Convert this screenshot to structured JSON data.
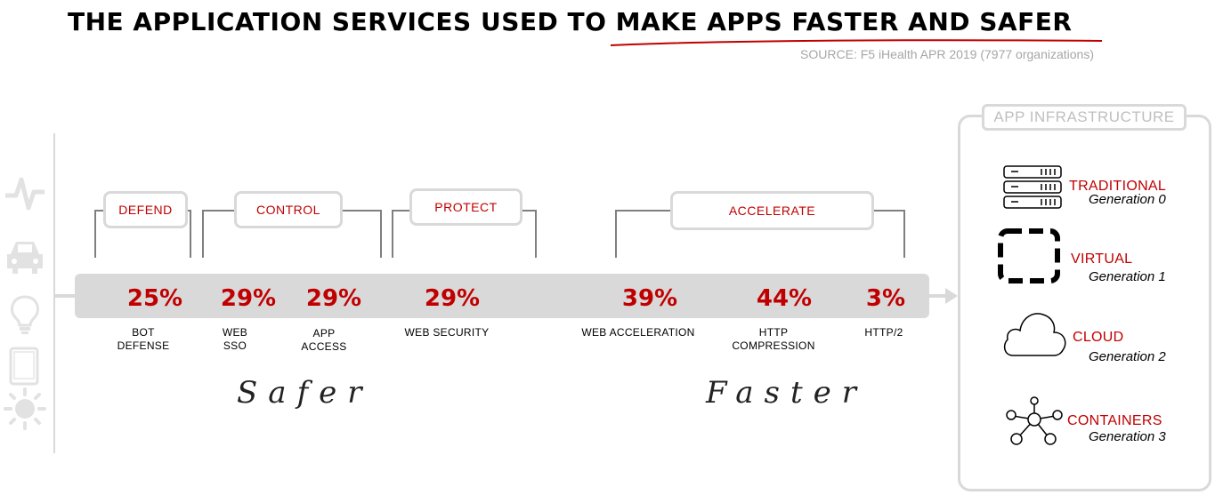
{
  "header": {
    "title": "THE APPLICATION SERVICES USED TO MAKE APPS FASTER AND SAFER",
    "source": "SOURCE: F5 iHealth APR 2019 (7977 organizations)"
  },
  "sidebar": {
    "icons": [
      "pulse-icon",
      "car-icon",
      "lightbulb-icon",
      "tablet-icon",
      "sun-icon"
    ]
  },
  "categories": [
    "DEFEND",
    "CONTROL",
    "PROTECT",
    "ACCELERATE"
  ],
  "chart_data": {
    "type": "table",
    "series": [
      {
        "categories": [
          "BOT DEFENSE",
          "WEB SSO",
          "APP ACCESS",
          "WEB SECURITY",
          "WEB ACCELERATION",
          "HTTP COMPRESSION",
          "HTTP/2"
        ],
        "values": [
          25,
          29,
          29,
          29,
          39,
          44,
          3
        ]
      }
    ]
  },
  "services": [
    {
      "pct": "25%",
      "label_1": "BOT",
      "label_2": "DEFENSE"
    },
    {
      "pct": "29%",
      "label_1": "WEB",
      "label_2": "SSO"
    },
    {
      "pct": "29%",
      "label_1": "APP",
      "label_2": "ACCESS"
    },
    {
      "pct": "29%",
      "label_1": "WEB SECURITY",
      "label_2": ""
    },
    {
      "pct": "39%",
      "label_1": "WEB ACCELERATION",
      "label_2": ""
    },
    {
      "pct": "44%",
      "label_1": "HTTP",
      "label_2": "COMPRESSION"
    },
    {
      "pct": "3%",
      "label_1": "HTTP/2",
      "label_2": ""
    }
  ],
  "groups": {
    "safer": "Safer",
    "faster": "Faster"
  },
  "infrastructure": {
    "title": "APP INFRASTRUCTURE",
    "items": [
      {
        "name": "TRADITIONAL",
        "generation": "Generation 0",
        "icon": "server-icon"
      },
      {
        "name": "VIRTUAL",
        "generation": "Generation 1",
        "icon": "virtual-box-icon"
      },
      {
        "name": "CLOUD",
        "generation": "Generation 2",
        "icon": "cloud-icon"
      },
      {
        "name": "CONTAINERS",
        "generation": "Generation 3",
        "icon": "network-icon"
      }
    ]
  },
  "colors": {
    "accent": "#c00000",
    "gray": "#d9d9d9",
    "muted": "#a6a6a6"
  }
}
